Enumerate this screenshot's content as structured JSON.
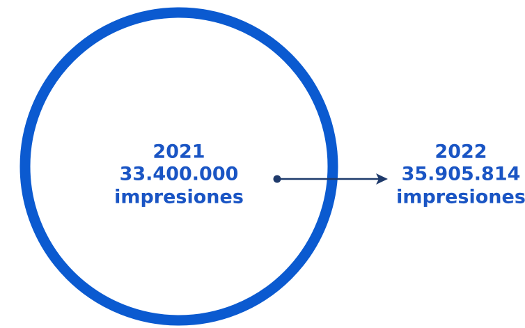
{
  "items": [
    {
      "year": "2021",
      "value": "33.400.000",
      "unit": "impresiones"
    },
    {
      "year": "2022",
      "value": "35.905.814",
      "unit": "impresiones"
    }
  ]
}
